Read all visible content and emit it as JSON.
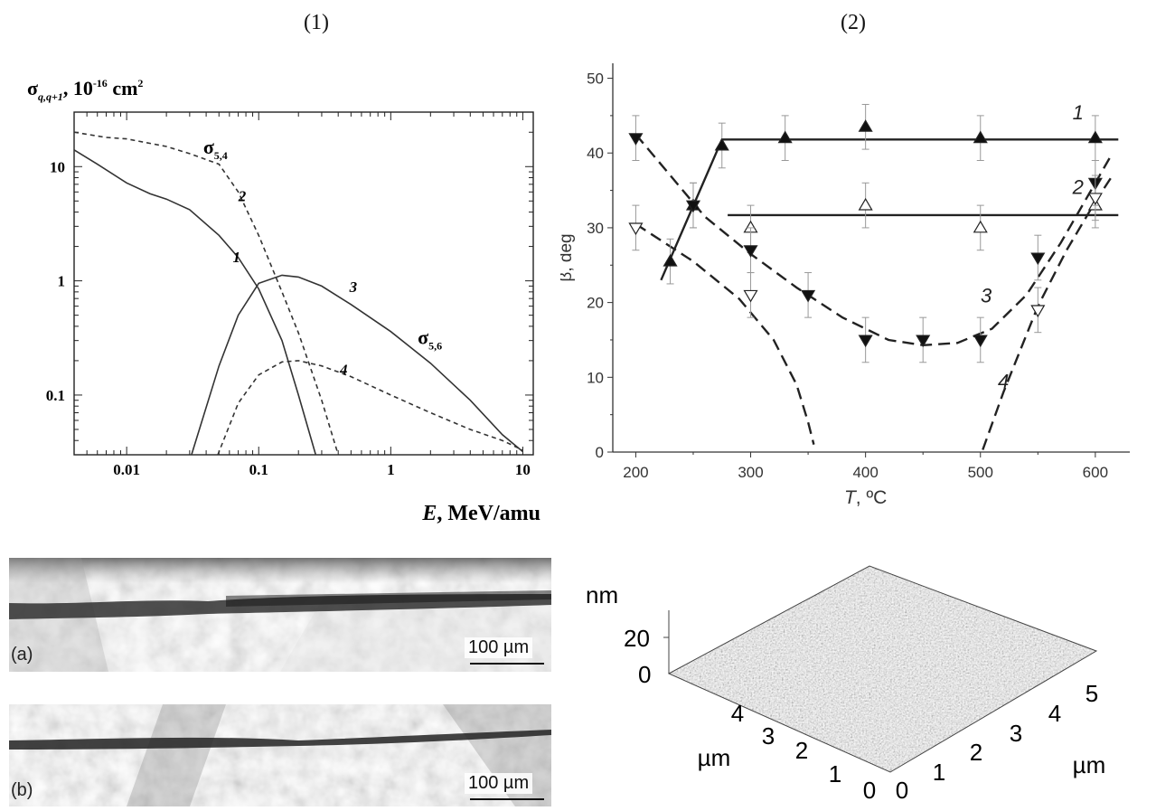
{
  "panels": {
    "p1_label": "(1)",
    "p2_label": "(2)"
  },
  "chart_data": [
    {
      "type": "line",
      "ylabel_base": "σ",
      "ylabel_sub": "q,q+1",
      "ylabel_rest": ", 10",
      "ylabel_exp": "-16",
      "ylabel_unit": " cm",
      "ylabel_unit_exp": "2",
      "xlabel_var": "E",
      "xlabel_rest": ", MeV/amu",
      "x_scale": "log",
      "y_scale": "log",
      "xlim": [
        0.004,
        12
      ],
      "ylim": [
        0.03,
        30
      ],
      "x_ticks": [
        {
          "v": 0.01,
          "label": "0.01"
        },
        {
          "v": 0.1,
          "label": "0.1"
        },
        {
          "v": 1,
          "label": "1"
        },
        {
          "v": 10,
          "label": "10"
        }
      ],
      "y_ticks": [
        {
          "v": 0.1,
          "label": "0.1"
        },
        {
          "v": 1,
          "label": "1"
        },
        {
          "v": 10,
          "label": "10"
        }
      ],
      "series": [
        {
          "id": "1",
          "style": "solid",
          "x": [
            0.004,
            0.006,
            0.01,
            0.015,
            0.02,
            0.03,
            0.05,
            0.07,
            0.1,
            0.15,
            0.2,
            0.27
          ],
          "y": [
            14,
            10.5,
            7.2,
            5.8,
            5.2,
            4.2,
            2.5,
            1.6,
            0.85,
            0.3,
            0.1,
            0.03
          ]
        },
        {
          "id": "2",
          "style": "dashed",
          "x": [
            0.004,
            0.007,
            0.01,
            0.02,
            0.03,
            0.05,
            0.07,
            0.1,
            0.15,
            0.2,
            0.3,
            0.4
          ],
          "y": [
            20,
            18,
            17.5,
            15,
            13,
            10.5,
            6,
            2.5,
            0.8,
            0.35,
            0.09,
            0.03
          ]
        },
        {
          "id": "3",
          "style": "solid",
          "x": [
            0.031,
            0.05,
            0.07,
            0.1,
            0.15,
            0.2,
            0.3,
            0.5,
            1,
            2,
            4,
            7,
            10
          ],
          "y": [
            0.03,
            0.18,
            0.5,
            0.95,
            1.12,
            1.08,
            0.9,
            0.62,
            0.36,
            0.19,
            0.09,
            0.045,
            0.032
          ]
        },
        {
          "id": "4",
          "style": "dashed",
          "x": [
            0.049,
            0.07,
            0.1,
            0.15,
            0.2,
            0.3,
            0.5,
            1,
            2,
            4,
            7,
            10
          ],
          "y": [
            0.03,
            0.085,
            0.15,
            0.195,
            0.2,
            0.18,
            0.145,
            0.1,
            0.07,
            0.05,
            0.04,
            0.033
          ]
        }
      ],
      "annotations": [
        {
          "kind": "sigma",
          "text": "σ",
          "sub": "5,4",
          "x": 0.038,
          "y": 13
        },
        {
          "kind": "sigma",
          "text": "σ",
          "sub": "5,6",
          "x": 1.6,
          "y": 0.28
        },
        {
          "kind": "curve",
          "text": "1",
          "x": 0.068,
          "y": 1.45
        },
        {
          "kind": "curve",
          "text": "2",
          "x": 0.075,
          "y": 5.0
        },
        {
          "kind": "curve",
          "text": "3",
          "x": 0.52,
          "y": 0.8
        },
        {
          "kind": "curve",
          "text": "4",
          "x": 0.44,
          "y": 0.15
        }
      ]
    },
    {
      "type": "scatter",
      "ylabel": "β, deg",
      "xlabel_var": "T",
      "xlabel_rest": ", ºC",
      "xlim": [
        180,
        630
      ],
      "ylim": [
        0,
        52
      ],
      "x_ticks": [
        200,
        300,
        400,
        500,
        600
      ],
      "y_ticks": [
        0,
        10,
        20,
        30,
        40,
        50
      ],
      "series": [
        {
          "id": "1",
          "marker": "triangle-up-filled",
          "x": [
            230,
            250,
            275,
            330,
            400,
            500,
            600
          ],
          "y": [
            25.5,
            33,
            41,
            42,
            43.5,
            42,
            42
          ]
        },
        {
          "id": "2",
          "marker": "triangle-up-open",
          "x": [
            300,
            400,
            500,
            600
          ],
          "y": [
            30,
            33,
            30,
            33
          ]
        },
        {
          "id": "3",
          "marker": "triangle-down-filled",
          "x": [
            200,
            250,
            300,
            350,
            400,
            450,
            500,
            550,
            600
          ],
          "y": [
            42,
            33,
            27,
            21,
            15,
            15,
            15,
            26,
            36
          ]
        },
        {
          "id": "4",
          "marker": "triangle-down-open",
          "x": [
            200,
            300,
            550,
            600
          ],
          "y": [
            30,
            21,
            19,
            34
          ]
        }
      ],
      "error_bar": 3,
      "fit_lines": [
        {
          "id": "line-1",
          "style": "solid",
          "x": [
            222,
            275,
            275,
            620
          ],
          "y": [
            23,
            41.8,
            41.8,
            41.8
          ]
        },
        {
          "id": "line-2",
          "style": "solid",
          "x": [
            280,
            620
          ],
          "y": [
            31.7,
            31.7
          ]
        },
        {
          "id": "curve-3",
          "style": "dashed",
          "x": [
            200,
            230,
            260,
            300,
            340,
            380,
            420,
            450,
            480,
            510,
            540,
            570,
            600,
            615
          ],
          "y": [
            42.5,
            37,
            31.5,
            26.5,
            22,
            18,
            15,
            14.3,
            14.6,
            16.5,
            21,
            28,
            36,
            40
          ]
        },
        {
          "id": "curve-4a",
          "style": "dashed",
          "x": [
            200,
            250,
            290,
            320,
            340,
            350,
            355
          ],
          "y": [
            30.5,
            25.5,
            20.5,
            15,
            9,
            4,
            1
          ]
        },
        {
          "id": "curve-4b",
          "style": "dashed",
          "x": [
            502,
            520,
            550,
            575,
            600,
            615
          ],
          "y": [
            0.3,
            8,
            19.5,
            27,
            33.5,
            37
          ]
        }
      ],
      "labels": [
        {
          "text": "1",
          "x": 585,
          "y": 44.5
        },
        {
          "text": "2",
          "x": 585,
          "y": 34.5
        },
        {
          "text": "3",
          "x": 505,
          "y": 20
        },
        {
          "text": "4",
          "x": 520,
          "y": 8.5
        }
      ]
    },
    {
      "type": "surface-3d",
      "z_unit": "nm",
      "z_ticks": [
        "0",
        "20"
      ],
      "x_ticks": [
        "0",
        "1",
        "2",
        "3",
        "4",
        "5"
      ],
      "y_ticks": [
        "0",
        "1",
        "2",
        "3",
        "4"
      ],
      "x_unit": "µm",
      "y_unit": "µm"
    }
  ],
  "micrographs": [
    {
      "label": "(a)",
      "scale": "100 µm"
    },
    {
      "label": "(b)",
      "scale": "100 µm"
    }
  ]
}
